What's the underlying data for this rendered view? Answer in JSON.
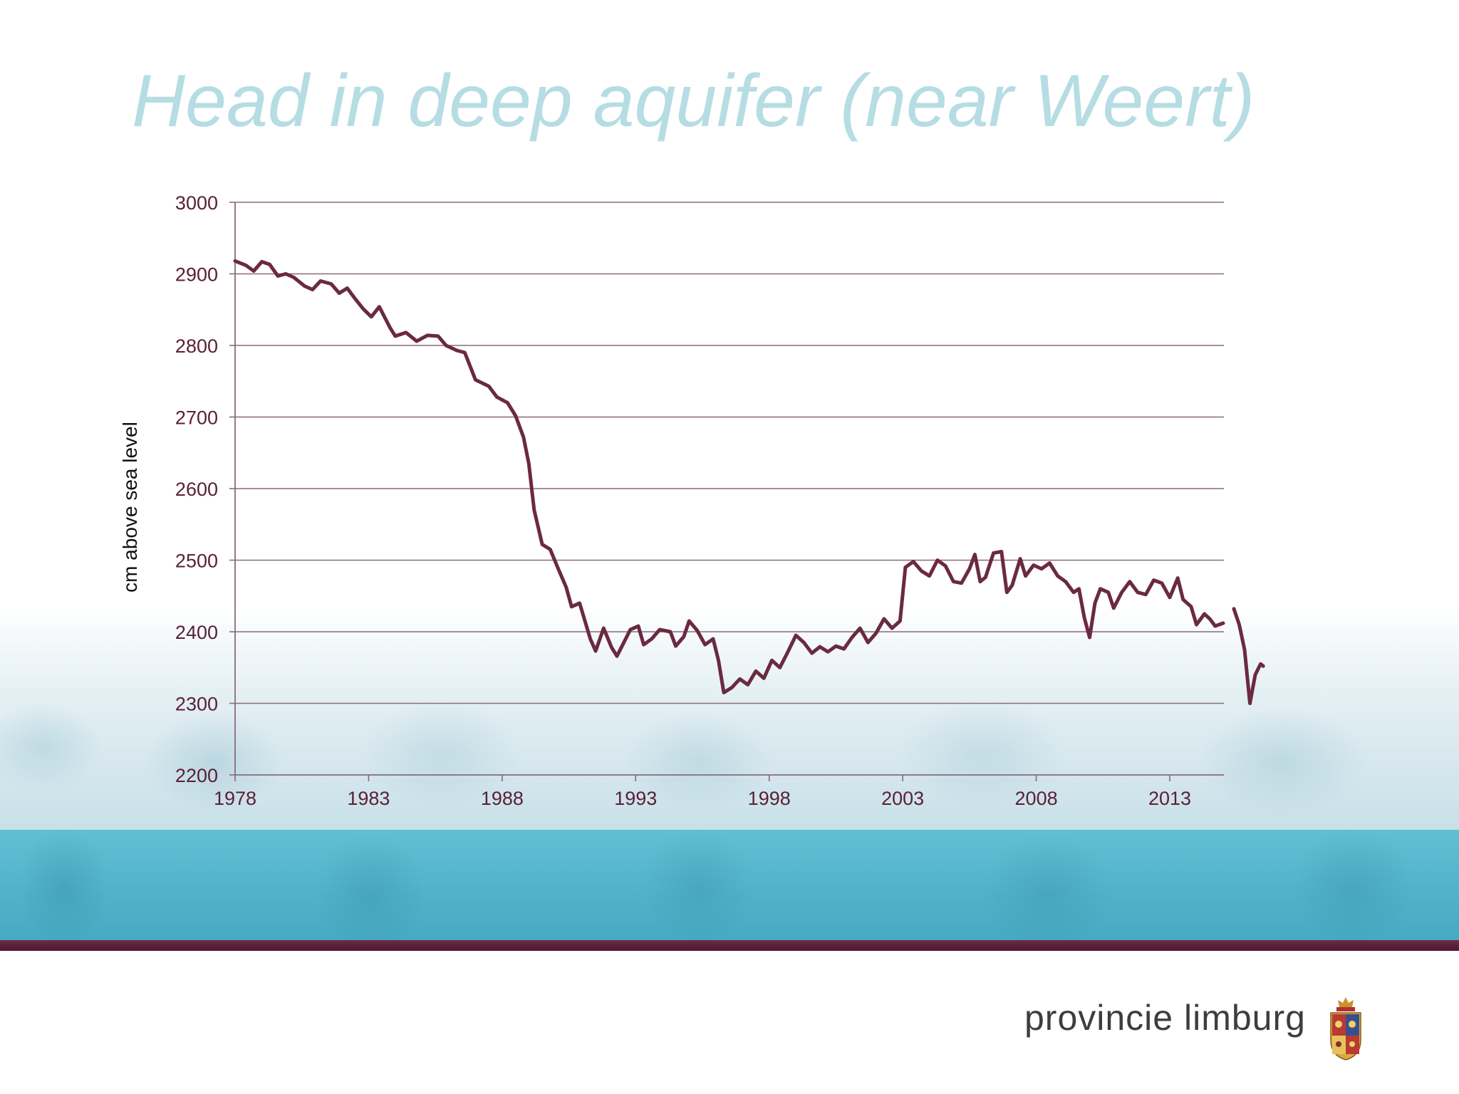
{
  "slide": {
    "title": "Head in deep aquifer (near Weert)",
    "brand_text": "provincie limburg",
    "emblem_icon": "coat-of-arms-icon"
  },
  "colors": {
    "title": "#b5dde3",
    "series": "#6a2a40",
    "grid": "#8a6a7a",
    "axis_text": "#5a1f37",
    "band": "#4fb2c9",
    "rule": "#5e2039"
  },
  "chart_data": {
    "type": "line",
    "title": "",
    "xlabel": "",
    "ylabel": "cm above sea level",
    "xlim": [
      1978,
      2016
    ],
    "ylim": [
      2200,
      3000
    ],
    "yticks": [
      2200,
      2300,
      2400,
      2500,
      2600,
      2700,
      2800,
      2900,
      3000
    ],
    "xticks": [
      1978,
      1983,
      1988,
      1993,
      1998,
      2003,
      2008,
      2013
    ],
    "grid": "horizontal",
    "legend": "none",
    "series": [
      {
        "values": [
          [
            1978.0,
            2918
          ],
          [
            1978.4,
            2912
          ],
          [
            1978.7,
            2904
          ],
          [
            1979.0,
            2917
          ],
          [
            1979.3,
            2913
          ],
          [
            1979.6,
            2897
          ],
          [
            1979.9,
            2900
          ],
          [
            1980.2,
            2895
          ],
          [
            1980.6,
            2883
          ],
          [
            1980.9,
            2878
          ],
          [
            1981.2,
            2890
          ],
          [
            1981.6,
            2886
          ],
          [
            1981.9,
            2873
          ],
          [
            1982.2,
            2880
          ],
          [
            1982.5,
            2865
          ],
          [
            1982.8,
            2851
          ],
          [
            1983.1,
            2840
          ],
          [
            1983.4,
            2854
          ],
          [
            1983.8,
            2825
          ],
          [
            1984.0,
            2813
          ],
          [
            1984.4,
            2818
          ],
          [
            1984.8,
            2806
          ],
          [
            1985.2,
            2814
          ],
          [
            1985.6,
            2813
          ],
          [
            1985.9,
            2800
          ],
          [
            1986.3,
            2793
          ],
          [
            1986.6,
            2790
          ],
          [
            1987.0,
            2752
          ],
          [
            1987.5,
            2743
          ],
          [
            1987.8,
            2728
          ],
          [
            1988.2,
            2720
          ],
          [
            1988.5,
            2702
          ],
          [
            1988.8,
            2672
          ],
          [
            1989.0,
            2635
          ],
          [
            1989.2,
            2570
          ],
          [
            1989.5,
            2522
          ],
          [
            1989.8,
            2515
          ],
          [
            1990.1,
            2488
          ],
          [
            1990.4,
            2462
          ],
          [
            1990.6,
            2435
          ],
          [
            1990.9,
            2440
          ],
          [
            1991.1,
            2415
          ],
          [
            1991.3,
            2390
          ],
          [
            1991.5,
            2373
          ],
          [
            1991.8,
            2405
          ],
          [
            1992.1,
            2378
          ],
          [
            1992.3,
            2366
          ],
          [
            1992.8,
            2403
          ],
          [
            1993.1,
            2408
          ],
          [
            1993.3,
            2382
          ],
          [
            1993.6,
            2390
          ],
          [
            1993.9,
            2403
          ],
          [
            1994.3,
            2400
          ],
          [
            1994.5,
            2380
          ],
          [
            1994.8,
            2393
          ],
          [
            1995.0,
            2415
          ],
          [
            1995.3,
            2402
          ],
          [
            1995.6,
            2382
          ],
          [
            1995.9,
            2390
          ],
          [
            1996.1,
            2360
          ],
          [
            1996.3,
            2315
          ],
          [
            1996.6,
            2322
          ],
          [
            1996.9,
            2334
          ],
          [
            1997.2,
            2326
          ],
          [
            1997.5,
            2345
          ],
          [
            1997.8,
            2335
          ],
          [
            1998.1,
            2360
          ],
          [
            1998.4,
            2350
          ],
          [
            1998.7,
            2372
          ],
          [
            1999.0,
            2395
          ],
          [
            1999.3,
            2385
          ],
          [
            1999.6,
            2370
          ],
          [
            1999.9,
            2379
          ],
          [
            2000.2,
            2372
          ],
          [
            2000.5,
            2380
          ],
          [
            2000.8,
            2376
          ],
          [
            2001.1,
            2392
          ],
          [
            2001.4,
            2405
          ],
          [
            2001.7,
            2385
          ],
          [
            2002.0,
            2398
          ],
          [
            2002.3,
            2418
          ],
          [
            2002.6,
            2405
          ],
          [
            2002.9,
            2415
          ],
          [
            2003.1,
            2490
          ],
          [
            2003.4,
            2498
          ],
          [
            2003.7,
            2485
          ],
          [
            2004.0,
            2478
          ],
          [
            2004.3,
            2500
          ],
          [
            2004.6,
            2492
          ],
          [
            2004.9,
            2470
          ],
          [
            2005.2,
            2468
          ],
          [
            2005.5,
            2488
          ],
          [
            2005.7,
            2508
          ],
          [
            2005.9,
            2470
          ],
          [
            2006.1,
            2476
          ],
          [
            2006.4,
            2510
          ],
          [
            2006.7,
            2512
          ],
          [
            2006.9,
            2455
          ],
          [
            2007.1,
            2465
          ],
          [
            2007.4,
            2502
          ],
          [
            2007.6,
            2478
          ],
          [
            2007.9,
            2493
          ],
          [
            2008.2,
            2488
          ],
          [
            2008.5,
            2496
          ],
          [
            2008.8,
            2478
          ],
          [
            2009.1,
            2470
          ],
          [
            2009.4,
            2455
          ],
          [
            2009.6,
            2460
          ],
          [
            2009.8,
            2420
          ],
          [
            2010.0,
            2392
          ],
          [
            2010.2,
            2440
          ],
          [
            2010.4,
            2460
          ],
          [
            2010.7,
            2455
          ],
          [
            2010.9,
            2433
          ],
          [
            2011.2,
            2455
          ],
          [
            2011.5,
            2470
          ],
          [
            2011.8,
            2455
          ],
          [
            2012.1,
            2452
          ],
          [
            2012.4,
            2472
          ],
          [
            2012.7,
            2468
          ],
          [
            2013.0,
            2448
          ],
          [
            2013.3,
            2475
          ],
          [
            2013.5,
            2445
          ],
          [
            2013.8,
            2435
          ],
          [
            2014.0,
            2410
          ],
          [
            2014.3,
            2425
          ],
          [
            2014.5,
            2418
          ],
          [
            2014.7,
            2408
          ],
          [
            2015.0,
            2412
          ]
        ]
      },
      {
        "values": [
          [
            2015.4,
            2432
          ],
          [
            2015.6,
            2410
          ],
          [
            2015.8,
            2375
          ],
          [
            2016.0,
            2300
          ],
          [
            2016.2,
            2340
          ],
          [
            2016.4,
            2355
          ],
          [
            2016.5,
            2352
          ]
        ]
      }
    ]
  }
}
